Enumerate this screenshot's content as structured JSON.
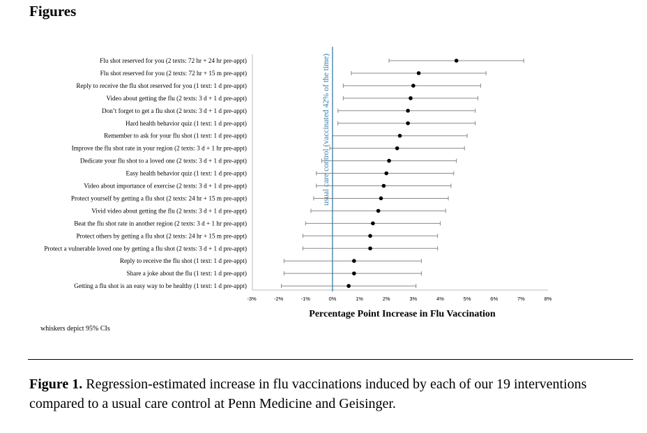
{
  "section_heading": "Figures",
  "footnote": "whiskers depict 95% CIs",
  "caption": {
    "label": "Figure 1.",
    "text": "Regression-estimated increase in flu vaccinations induced by each of our 19 interventions compared to a usual care control at Penn Medicine and Geisinger."
  },
  "colors": {
    "control_line": "#3a7ca5",
    "whisker": "#888888",
    "point": "#000000",
    "axis": "#bbbbbb"
  },
  "chart_data": {
    "type": "scatter",
    "orientation": "horizontal",
    "xlabel": "Percentage Point Increase in Flu Vaccination",
    "xlim": [
      -3,
      8
    ],
    "xticks": [
      -3,
      -2,
      -1,
      0,
      1,
      2,
      3,
      4,
      5,
      6,
      7,
      8
    ],
    "xtick_labels": [
      "-3%",
      "-2%",
      "-1%",
      "0%",
      "1%",
      "2%",
      "3%",
      "4%",
      "5%",
      "6%",
      "7%",
      "8%"
    ],
    "reference_line": {
      "x": 0,
      "label": "usual care control (vaccinated 42% of the time)"
    },
    "categories": [
      "Flu shot reserved for you (2 texts: 72 hr + 24 hr pre-appt)",
      "Flu shot reserved for you (2 texts: 72 hr + 15 m pre-appt)",
      "Reply to receive the flu shot reserved for you (1 text: 1 d pre-appt)",
      "Video about getting the flu (2 texts: 3 d + 1 d pre-appt)",
      "Don’t forget to get a flu shot (2 texts: 3 d + 1 d pre-appt)",
      "Hard health behavior quiz (1 text: 1 d pre-appt)",
      "Remember to ask for your flu shot (1 text: 1 d pre-appt)",
      "Improve the flu shot rate in your region (2 texts: 3 d + 1 hr pre-appt)",
      "Dedicate your flu shot to a loved one (2 texts: 3 d + 1 d pre-appt)",
      "Easy health behavior quiz (1 text: 1 d pre-appt)",
      "Video about importance of exercise (2 texts: 3 d + 1 d pre-appt)",
      "Protect yourself by getting a flu shot (2 texts: 24 hr + 15 m pre-appt)",
      "Vivid video about getting the flu (2 texts: 3 d + 1 d pre-appt)",
      "Beat the flu shot rate in another region (2 texts: 3 d + 1 hr pre-appt)",
      "Protect others by getting a flu shot (2 texts: 24 hr + 15 m pre-appt)",
      "Protect a vulnerable loved one by getting a flu shot (2 texts: 3 d + 1 d pre-appt)",
      "Reply to receive the flu shot (1 text: 1 d pre-appt)",
      "Share a joke about the flu (1 text: 1 d pre-appt)",
      "Getting a flu shot is an easy way to be healthy (1 text: 1 d pre-appt)"
    ],
    "estimates": [
      4.6,
      3.2,
      3.0,
      2.9,
      2.8,
      2.8,
      2.5,
      2.4,
      2.1,
      2.0,
      1.9,
      1.8,
      1.7,
      1.5,
      1.4,
      1.4,
      0.8,
      0.8,
      0.6
    ],
    "ci_low": [
      2.1,
      0.7,
      0.4,
      0.4,
      0.2,
      0.2,
      0.0,
      -0.1,
      -0.4,
      -0.6,
      -0.6,
      -0.7,
      -0.8,
      -1.0,
      -1.1,
      -1.1,
      -1.8,
      -1.8,
      -1.9
    ],
    "ci_high": [
      7.1,
      5.7,
      5.5,
      5.4,
      5.3,
      5.3,
      5.0,
      4.9,
      4.6,
      4.5,
      4.4,
      4.3,
      4.2,
      4.0,
      3.9,
      3.9,
      3.3,
      3.3,
      3.1
    ],
    "grid": false
  }
}
